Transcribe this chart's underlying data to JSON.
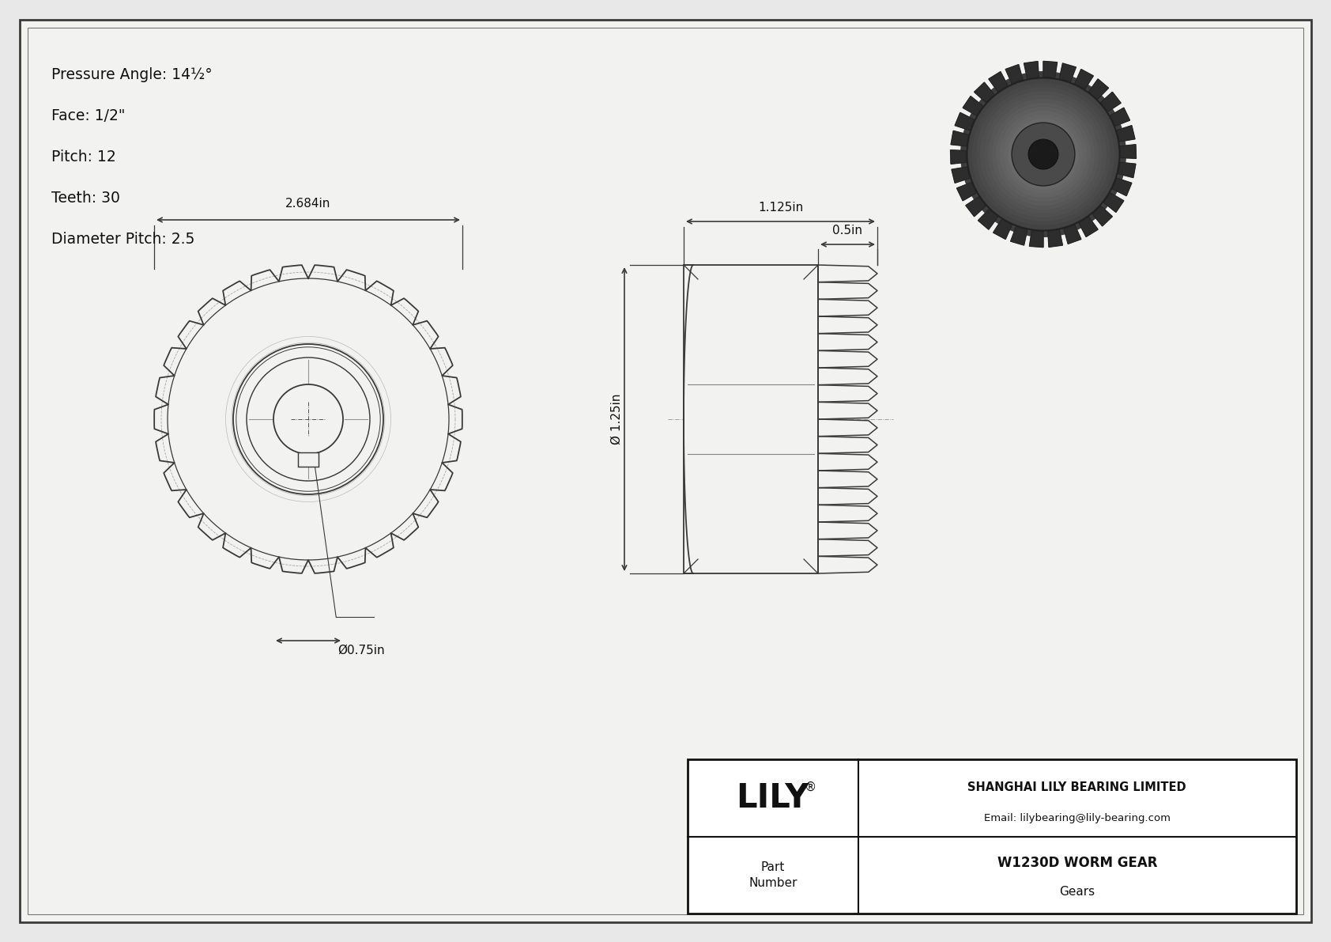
{
  "bg_color": "#e8e8e8",
  "paper_color": "#f2f2f0",
  "line_color": "#3a3a3a",
  "specs": [
    "Pressure Angle: 14½°",
    "Face: 1/2\"",
    "Pitch: 12",
    "Teeth: 30",
    "Diameter Pitch: 2.5"
  ],
  "dim_front_width": "2.684in",
  "dim_front_bore": "Ø0.75in",
  "dim_side_top": "1.125in",
  "dim_side_width": "0.5in",
  "dim_side_height": "Ø 1.25in",
  "title_block": {
    "logo": "LILY",
    "registered": "®",
    "company": "SHANGHAI LILY BEARING LIMITED",
    "email": "Email: lilybearing@lily-bearing.com",
    "part_label": "Part\nNumber",
    "part_name": "W1230D WORM GEAR",
    "category": "Gears"
  }
}
